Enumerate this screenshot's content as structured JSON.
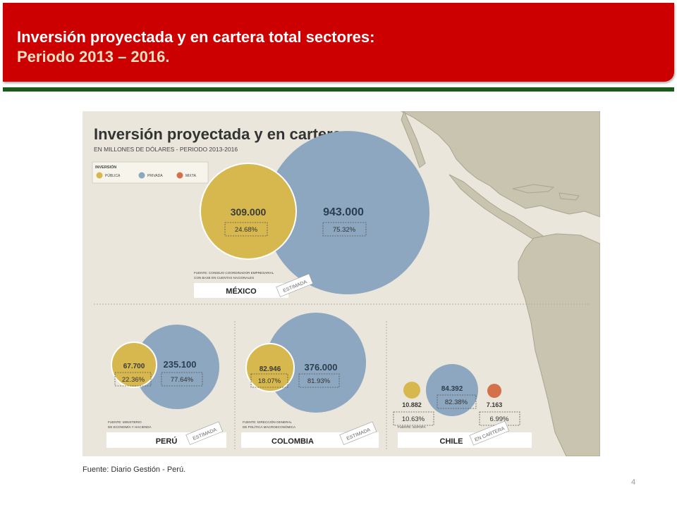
{
  "slide": {
    "title_line1": "Inversión proyectada y en cartera total sectores:",
    "title_line2": "Periodo 2013 – 2016.",
    "source": "Fuente: Diario Gestión - Perú.",
    "page_number": "4"
  },
  "colors": {
    "header_red": "#cc0000",
    "title_line2": "#f1e0c4",
    "publica": "#d6b84e",
    "privada": "#8ca7bf",
    "mixta": "#d4714a",
    "land": "#c9c4b0",
    "sea": "#eae6dc"
  },
  "infographic": {
    "title": "Inversión proyectada y en cartera",
    "subtitle": "EN MILLONES DE DÓLARES - PERIODO 2013-2016",
    "legend": {
      "heading": "INVERSIÓN",
      "items": [
        {
          "label": "PÚBLICA",
          "color": "#d6b84e"
        },
        {
          "label": "PRIVADA",
          "color": "#8ca7bf"
        },
        {
          "label": "MIXTA",
          "color": "#d4714a"
        }
      ]
    },
    "mexico": {
      "publica": "309.000",
      "privada": "943.000",
      "pct_publica": "24.68%",
      "pct_privada": "75.32%",
      "fuente": "FUENTE: CONSEJO COORDINADOR EMPRESARIAL",
      "fuente2": "CON BASE EN CUENTAS NACIONALES",
      "country": "MÉXICO",
      "stamp": "ESTIMADA"
    },
    "peru": {
      "publica": "67.700",
      "privada": "235.100",
      "pct_publica": "22.36%",
      "pct_privada": "77.64%",
      "fuente": "FUENTE: MINISTERIO",
      "fuente2": "DE ECONOMÍA Y HACIENDA",
      "country": "PERÚ",
      "stamp": "ESTIMADA"
    },
    "colombia": {
      "publica": "82.946",
      "privada": "376.000",
      "pct_publica": "18.07%",
      "pct_privada": "81.93%",
      "fuente": "FUENTE: DIRECCIÓN GENERAL",
      "fuente2": "DE POLÍTICA MACROECONÓMICA",
      "country": "COLOMBIA",
      "stamp": "ESTIMADA"
    },
    "chile": {
      "publica": "10.882",
      "privada": "84.392",
      "mixta": "7.163",
      "pct_publica": "10.63%",
      "pct_privada": "82.38%",
      "pct_mixta": "6.99%",
      "fuente": "FUENTE: SOFOFA",
      "country": "CHILE",
      "stamp": "EN CARTERA"
    }
  }
}
